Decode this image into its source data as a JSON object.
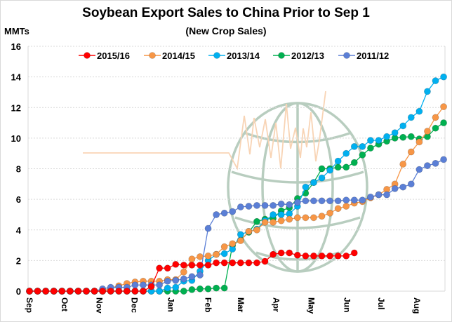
{
  "chart_data": {
    "type": "line",
    "title": "Soybean Export Sales to China Prior to Sep 1",
    "subtitle": "(New Crop Sales)",
    "ylabel": "MMTs",
    "xlabel": "",
    "ylim": [
      0,
      16
    ],
    "yticks": [
      0,
      2,
      4,
      6,
      8,
      10,
      12,
      14,
      16
    ],
    "grid": true,
    "legend_position": "top",
    "x_tick_labels": [
      "Sep",
      "Oct",
      "Nov",
      "Dec",
      "Jan",
      "Feb",
      "Mar",
      "Apr",
      "May",
      "Jun",
      "Jul",
      "Aug"
    ],
    "x_tick_week_index": [
      0,
      4.3,
      8.6,
      12.9,
      17.4,
      22,
      26,
      30.4,
      34.7,
      39.1,
      43.3,
      47.7
    ],
    "weeks": 52,
    "series": [
      {
        "name": "2015/16",
        "color": "#ff0000",
        "values": [
          0,
          0,
          0,
          0,
          0,
          0,
          0,
          0,
          0,
          0,
          0,
          0,
          0,
          0,
          0,
          0.3,
          1.5,
          1.5,
          1.75,
          1.7,
          1.7,
          1.7,
          1.7,
          1.85,
          1.85,
          1.85,
          1.85,
          1.85,
          1.85,
          1.95,
          2.4,
          2.5,
          2.5,
          2.35,
          2.3,
          2.3,
          2.3,
          2.3,
          2.3,
          2.3,
          2.5
        ]
      },
      {
        "name": "2014/15",
        "color": "#f79646",
        "values": [
          0,
          0,
          0,
          0,
          0,
          0,
          0,
          0,
          0,
          0,
          0.2,
          0.35,
          0.5,
          0.6,
          0.65,
          0.65,
          0.65,
          0.75,
          0.75,
          1.25,
          2.1,
          2.25,
          2.3,
          2.4,
          2.9,
          3.1,
          3.3,
          3.9,
          4.0,
          4.5,
          4.5,
          4.6,
          4.7,
          4.8,
          4.8,
          4.8,
          4.9,
          5.1,
          5.4,
          5.55,
          5.75,
          5.85,
          6.1,
          6.3,
          6.65,
          7.0,
          8.3,
          9.1,
          9.75,
          10.45,
          11.35,
          12.05
        ]
      },
      {
        "name": "2013/14",
        "color": "#00b0f0",
        "values": [
          0,
          0,
          0,
          0,
          0,
          0,
          0,
          0,
          0,
          0,
          0,
          0,
          0,
          0,
          0,
          0,
          0,
          0.2,
          0.25,
          0.65,
          0.7,
          1.3,
          2.0,
          2.4,
          2.45,
          2.75,
          3.7,
          3.9,
          4.05,
          4.6,
          5.0,
          5.0,
          5.05,
          5.55,
          6.8,
          7.1,
          7.4,
          7.9,
          8.5,
          9.0,
          9.45,
          9.45,
          9.85,
          9.85,
          10.1,
          10.35,
          10.8,
          11.35,
          11.75,
          13.05,
          13.75,
          14.0
        ]
      },
      {
        "name": "2012/13",
        "color": "#00b050",
        "values": [
          0,
          0,
          0,
          0,
          0,
          0,
          0,
          0,
          0,
          0,
          0,
          0,
          0,
          0,
          0,
          0,
          0,
          0,
          0,
          0,
          0.1,
          0.15,
          0.15,
          0.2,
          0.2,
          3.0,
          3.35,
          3.85,
          4.55,
          4.7,
          4.75,
          5.25,
          5.45,
          6.05,
          6.4,
          7.1,
          8.0,
          8.0,
          8.1,
          8.1,
          8.4,
          8.9,
          9.35,
          9.6,
          9.8,
          10.0,
          10.05,
          10.1,
          9.95,
          10.1,
          10.65,
          11.0
        ]
      },
      {
        "name": "2011/12",
        "color": "#5b7fd6",
        "values": [
          0,
          0,
          0,
          0,
          0,
          0,
          0,
          0,
          0,
          0.15,
          0.25,
          0.25,
          0.25,
          0.4,
          0.4,
          0.4,
          0.4,
          0.65,
          0.7,
          0.8,
          0.95,
          1.05,
          4.1,
          5.0,
          5.1,
          5.2,
          5.5,
          5.55,
          5.6,
          5.6,
          5.6,
          5.7,
          5.65,
          5.8,
          5.9,
          5.9,
          5.9,
          5.9,
          5.9,
          5.95,
          5.95,
          5.95,
          6.15,
          6.3,
          6.3,
          6.7,
          6.8,
          7.0,
          7.95,
          8.2,
          8.35,
          8.6
        ]
      }
    ]
  }
}
